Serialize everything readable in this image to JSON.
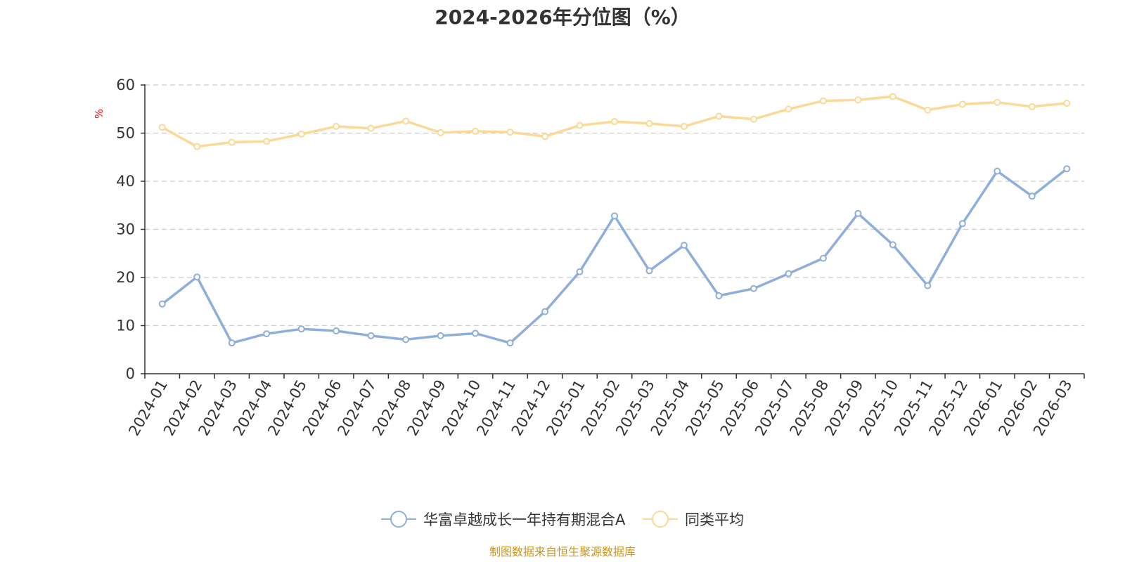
{
  "chart_data": {
    "type": "line",
    "title": "2024-2026年分位图（%）",
    "ylabel": "%",
    "xlabel": "",
    "ylim": [
      0,
      60
    ],
    "yticks": [
      0,
      10,
      20,
      30,
      40,
      50,
      60
    ],
    "grid": true,
    "legend_position": "bottom",
    "categories": [
      "2024-01",
      "2024-02",
      "2024-03",
      "2024-04",
      "2024-05",
      "2024-06",
      "2024-07",
      "2024-08",
      "2024-09",
      "2024-10",
      "2024-11",
      "2024-12",
      "2025-01",
      "2025-02",
      "2025-03",
      "2025-04",
      "2025-05",
      "2025-06",
      "2025-07",
      "2025-08",
      "2025-09",
      "2025-10",
      "2025-11",
      "2025-12",
      "2026-01",
      "2026-02",
      "2026-03"
    ],
    "series": [
      {
        "name": "华富卓越成长一年持有期混合A",
        "color": "#8eaedb",
        "values": [
          14.5,
          20.1,
          6.4,
          8.3,
          9.3,
          8.9,
          7.9,
          7.1,
          7.9,
          8.4,
          6.4,
          12.9,
          21.2,
          32.8,
          21.4,
          26.7,
          16.2,
          17.7,
          20.8,
          24.0,
          33.3,
          26.8,
          18.3,
          31.2,
          42.1,
          36.9,
          42.6
        ]
      },
      {
        "name": "同类平均",
        "color": "#fbd996",
        "values": [
          51.2,
          47.2,
          48.1,
          48.3,
          49.8,
          51.4,
          51.0,
          52.5,
          50.1,
          50.4,
          50.2,
          49.3,
          51.6,
          52.4,
          52.0,
          51.4,
          53.5,
          52.9,
          55.0,
          56.7,
          56.9,
          57.6,
          54.8,
          56.0,
          56.4,
          55.5,
          56.2
        ]
      }
    ]
  },
  "source": "制图数据来自恒生聚源数据库"
}
